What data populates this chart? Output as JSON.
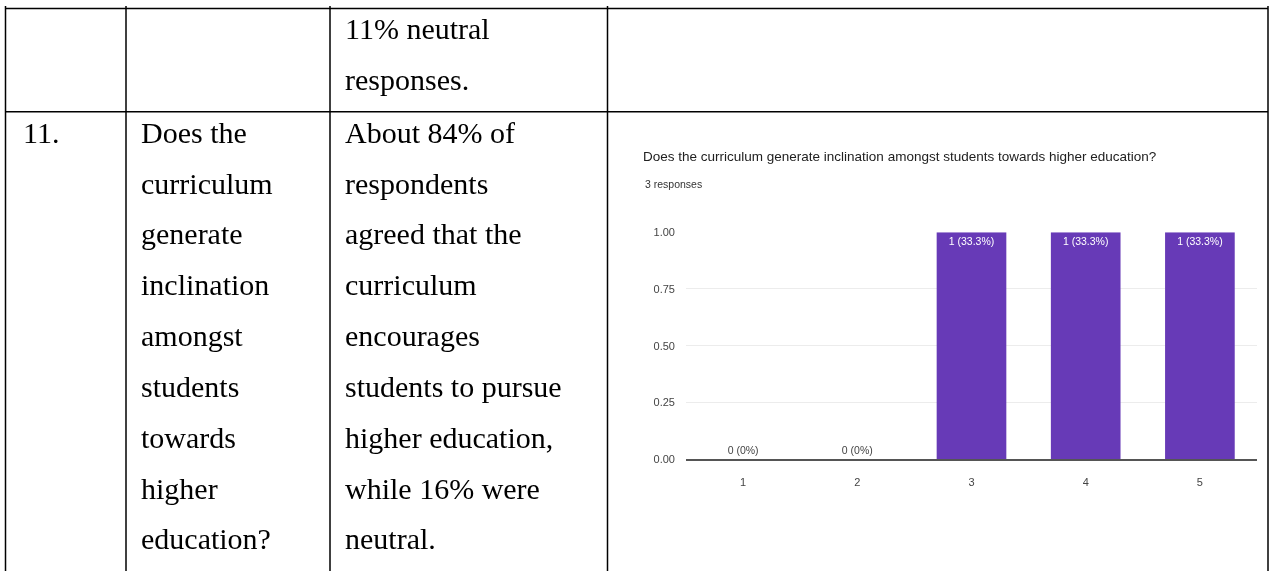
{
  "chart_data": {
    "type": "bar",
    "title": "Does the curriculum generate inclination amongst students towards higher education?",
    "subtitle": "3 responses",
    "categories": [
      "1",
      "2",
      "3",
      "4",
      "5"
    ],
    "values": [
      0,
      0,
      1,
      1,
      1
    ],
    "value_labels": [
      "0 (0%)",
      "0 (0%)",
      "1 (33.3%)",
      "1 (33.3%)",
      "1 (33.3%)"
    ],
    "color": "#673ab7",
    "ylim": [
      0,
      1
    ],
    "yticks": [
      {
        "value": 0,
        "label": "0.00"
      },
      {
        "value": 0.25,
        "label": "0.25"
      },
      {
        "value": 0.5,
        "label": "0.50"
      },
      {
        "value": 0.75,
        "label": "0.75"
      },
      {
        "value": 1,
        "label": "1.00"
      }
    ],
    "grid": "y",
    "annotations": [
      "11% neutral\nresponses.",
      "11.",
      "Does the\ncurriculum\ngenerate\ninclination\namongst\nstudents\ntowards\nhigher\neducation?",
      "About 84% of\nrespondents\nagreed that the\ncurriculum\nencourages\nstudents to pursue\nhigher education,\nwhile 16% were\nneutral."
    ]
  }
}
